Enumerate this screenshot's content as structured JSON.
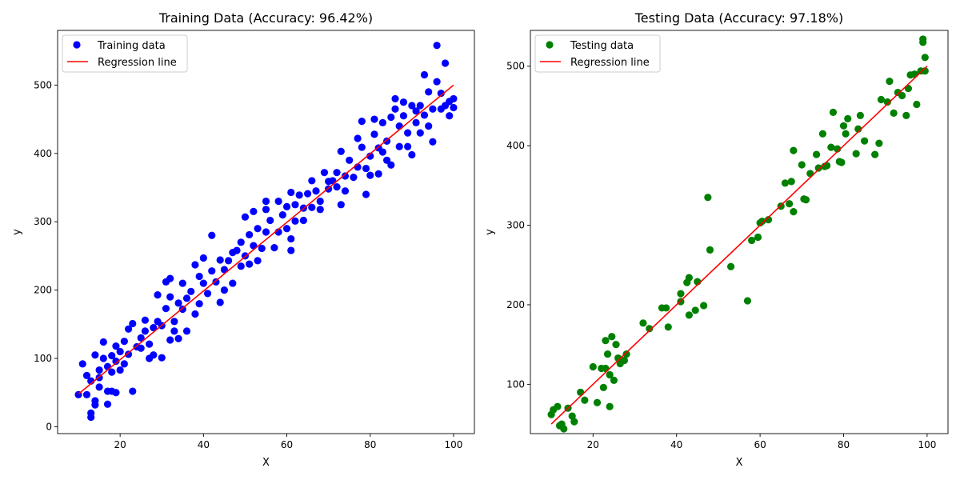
{
  "chart_data": [
    {
      "type": "scatter",
      "title": "Training Data (Accuracy: 96.42%)",
      "xlabel": "X",
      "ylabel": "y",
      "xlim": [
        5,
        105
      ],
      "ylim": [
        -10,
        580
      ],
      "xticks": [
        20,
        40,
        60,
        80,
        100
      ],
      "yticks": [
        0,
        100,
        200,
        300,
        400,
        500
      ],
      "legend_position": "top-left",
      "series": [
        {
          "name": "Training data",
          "kind": "points",
          "color": "#0000ff",
          "points": [
            [
              10,
              47
            ],
            [
              11,
              92
            ],
            [
              12,
              75
            ],
            [
              12,
              47
            ],
            [
              13,
              67
            ],
            [
              13,
              20
            ],
            [
              13,
              14
            ],
            [
              14,
              38
            ],
            [
              14,
              105
            ],
            [
              14,
              32
            ],
            [
              15,
              58
            ],
            [
              15,
              72
            ],
            [
              15,
              83
            ],
            [
              16,
              124
            ],
            [
              16,
              100
            ],
            [
              17,
              52
            ],
            [
              17,
              33
            ],
            [
              17,
              88
            ],
            [
              18,
              104
            ],
            [
              18,
              80
            ],
            [
              18,
              52
            ],
            [
              19,
              118
            ],
            [
              19,
              96
            ],
            [
              19,
              50
            ],
            [
              20,
              110
            ],
            [
              20,
              83
            ],
            [
              21,
              125
            ],
            [
              21,
              92
            ],
            [
              22,
              143
            ],
            [
              22,
              106
            ],
            [
              23,
              151
            ],
            [
              23,
              52
            ],
            [
              24,
              117
            ],
            [
              25,
              130
            ],
            [
              25,
              115
            ],
            [
              26,
              140
            ],
            [
              26,
              156
            ],
            [
              27,
              100
            ],
            [
              27,
              121
            ],
            [
              28,
              145
            ],
            [
              28,
              105
            ],
            [
              29,
              154
            ],
            [
              29,
              193
            ],
            [
              30,
              101
            ],
            [
              30,
              148
            ],
            [
              31,
              212
            ],
            [
              31,
              173
            ],
            [
              32,
              190
            ],
            [
              32,
              127
            ],
            [
              32,
              217
            ],
            [
              33,
              154
            ],
            [
              33,
              140
            ],
            [
              34,
              181
            ],
            [
              34,
              129
            ],
            [
              35,
              210
            ],
            [
              35,
              172
            ],
            [
              36,
              188
            ],
            [
              36,
              140
            ],
            [
              37,
              198
            ],
            [
              38,
              237
            ],
            [
              38,
              165
            ],
            [
              39,
              180
            ],
            [
              39,
              220
            ],
            [
              40,
              247
            ],
            [
              40,
              210
            ],
            [
              41,
              195
            ],
            [
              42,
              280
            ],
            [
              42,
              228
            ],
            [
              43,
              212
            ],
            [
              44,
              182
            ],
            [
              44,
              244
            ],
            [
              45,
              200
            ],
            [
              45,
              230
            ],
            [
              46,
              243
            ],
            [
              47,
              210
            ],
            [
              47,
              255
            ],
            [
              48,
              258
            ],
            [
              49,
              235
            ],
            [
              49,
              270
            ],
            [
              50,
              307
            ],
            [
              50,
              250
            ],
            [
              51,
              281
            ],
            [
              51,
              238
            ],
            [
              52,
              265
            ],
            [
              52,
              315
            ],
            [
              53,
              290
            ],
            [
              53,
              243
            ],
            [
              54,
              261
            ],
            [
              55,
              318
            ],
            [
              55,
              285
            ],
            [
              55,
              330
            ],
            [
              56,
              302
            ],
            [
              57,
              262
            ],
            [
              58,
              285
            ],
            [
              58,
              330
            ],
            [
              59,
              310
            ],
            [
              60,
              290
            ],
            [
              60,
              322
            ],
            [
              61,
              343
            ],
            [
              61,
              275
            ],
            [
              61,
              258
            ],
            [
              62,
              325
            ],
            [
              62,
              301
            ],
            [
              63,
              339
            ],
            [
              64,
              302
            ],
            [
              64,
              320
            ],
            [
              65,
              341
            ],
            [
              66,
              321
            ],
            [
              66,
              360
            ],
            [
              67,
              345
            ],
            [
              68,
              330
            ],
            [
              68,
              318
            ],
            [
              69,
              372
            ],
            [
              70,
              348
            ],
            [
              70,
              359
            ],
            [
              71,
              360
            ],
            [
              72,
              351
            ],
            [
              72,
              372
            ],
            [
              73,
              325
            ],
            [
              73,
              403
            ],
            [
              74,
              367
            ],
            [
              74,
              345
            ],
            [
              75,
              390
            ],
            [
              76,
              365
            ],
            [
              77,
              380
            ],
            [
              77,
              422
            ],
            [
              78,
              409
            ],
            [
              78,
              447
            ],
            [
              79,
              340
            ],
            [
              79,
              378
            ],
            [
              80,
              396
            ],
            [
              80,
              368
            ],
            [
              81,
              428
            ],
            [
              81,
              450
            ],
            [
              82,
              370
            ],
            [
              82,
              408
            ],
            [
              83,
              445
            ],
            [
              83,
              402
            ],
            [
              84,
              418
            ],
            [
              84,
              390
            ],
            [
              85,
              453
            ],
            [
              85,
              383
            ],
            [
              86,
              465
            ],
            [
              86,
              480
            ],
            [
              87,
              440
            ],
            [
              87,
              410
            ],
            [
              88,
              455
            ],
            [
              88,
              475
            ],
            [
              89,
              430
            ],
            [
              89,
              410
            ],
            [
              90,
              470
            ],
            [
              90,
              398
            ],
            [
              91,
              445
            ],
            [
              91,
              462
            ],
            [
              92,
              430
            ],
            [
              92,
              470
            ],
            [
              93,
              456
            ],
            [
              93,
              515
            ],
            [
              94,
              440
            ],
            [
              94,
              490
            ],
            [
              95,
              465
            ],
            [
              95,
              417
            ],
            [
              96,
              505
            ],
            [
              96,
              558
            ],
            [
              97,
              488
            ],
            [
              97,
              465
            ],
            [
              98,
              532
            ],
            [
              98,
              470
            ],
            [
              99,
              476
            ],
            [
              99,
              455
            ],
            [
              100,
              480
            ],
            [
              100,
              467
            ]
          ]
        },
        {
          "name": "Regression line",
          "kind": "line",
          "color": "#ff0000",
          "points": [
            [
              10,
              48
            ],
            [
              100,
              500
            ]
          ]
        }
      ]
    },
    {
      "type": "scatter",
      "title": "Testing Data (Accuracy: 97.18%)",
      "xlabel": "X",
      "ylabel": "y",
      "xlim": [
        5,
        105
      ],
      "ylim": [
        38,
        545
      ],
      "xticks": [
        20,
        40,
        60,
        80,
        100
      ],
      "yticks": [
        100,
        200,
        300,
        400,
        500
      ],
      "legend_position": "top-left",
      "series": [
        {
          "name": "Testing data",
          "kind": "points",
          "color": "#008000",
          "points": [
            [
              10,
              62
            ],
            [
              10.5,
              68
            ],
            [
              11.5,
              72
            ],
            [
              12,
              48
            ],
            [
              12.5,
              50
            ],
            [
              13,
              44
            ],
            [
              14,
              70
            ],
            [
              15,
              60
            ],
            [
              15.5,
              53
            ],
            [
              17,
              90
            ],
            [
              18,
              80
            ],
            [
              20,
              122
            ],
            [
              21,
              77
            ],
            [
              22,
              120
            ],
            [
              22.5,
              96
            ],
            [
              23,
              155
            ],
            [
              23,
              120
            ],
            [
              23.5,
              138
            ],
            [
              24,
              112
            ],
            [
              24,
              72
            ],
            [
              24.5,
              160
            ],
            [
              25,
              105
            ],
            [
              25.5,
              150
            ],
            [
              26,
              133
            ],
            [
              26.5,
              126
            ],
            [
              27,
              130
            ],
            [
              27.5,
              130
            ],
            [
              28,
              138
            ],
            [
              32,
              177
            ],
            [
              33.5,
              170
            ],
            [
              36.5,
              196
            ],
            [
              37.5,
              196
            ],
            [
              38,
              172
            ],
            [
              41,
              214
            ],
            [
              41,
              204
            ],
            [
              42.5,
              228
            ],
            [
              43,
              187
            ],
            [
              43,
              234
            ],
            [
              44.5,
              193
            ],
            [
              45,
              229
            ],
            [
              46.5,
              199
            ],
            [
              47.5,
              335
            ],
            [
              48,
              269
            ],
            [
              53,
              248
            ],
            [
              57,
              205
            ],
            [
              58,
              281
            ],
            [
              59.5,
              285
            ],
            [
              60,
              303
            ],
            [
              60.5,
              305
            ],
            [
              62,
              307
            ],
            [
              65,
              324
            ],
            [
              66,
              353
            ],
            [
              67,
              327
            ],
            [
              67.5,
              355
            ],
            [
              68,
              317
            ],
            [
              68,
              394
            ],
            [
              70,
              376
            ],
            [
              70.5,
              333
            ],
            [
              71,
              332
            ],
            [
              72,
              365
            ],
            [
              73.5,
              389
            ],
            [
              74,
              372
            ],
            [
              75,
              415
            ],
            [
              75.5,
              374
            ],
            [
              76,
              375
            ],
            [
              77,
              398
            ],
            [
              77.5,
              442
            ],
            [
              78.5,
              396
            ],
            [
              79,
              380
            ],
            [
              79.5,
              379
            ],
            [
              80,
              425
            ],
            [
              80.5,
              415
            ],
            [
              81,
              434
            ],
            [
              83,
              390
            ],
            [
              83.5,
              421
            ],
            [
              84,
              438
            ],
            [
              85,
              406
            ],
            [
              87.5,
              389
            ],
            [
              88.5,
              403
            ],
            [
              89,
              458
            ],
            [
              90.5,
              455
            ],
            [
              91,
              481
            ],
            [
              92,
              441
            ],
            [
              93,
              467
            ],
            [
              94,
              463
            ],
            [
              95,
              438
            ],
            [
              95.5,
              472
            ],
            [
              96,
              489
            ],
            [
              97,
              490
            ],
            [
              97.5,
              452
            ],
            [
              98.5,
              494
            ],
            [
              99,
              530
            ],
            [
              99,
              534
            ],
            [
              99.5,
              511
            ],
            [
              99.5,
              494
            ]
          ]
        },
        {
          "name": "Regression line",
          "kind": "line",
          "color": "#ff0000",
          "points": [
            [
              10,
              50
            ],
            [
              100,
              500
            ]
          ]
        }
      ]
    }
  ]
}
